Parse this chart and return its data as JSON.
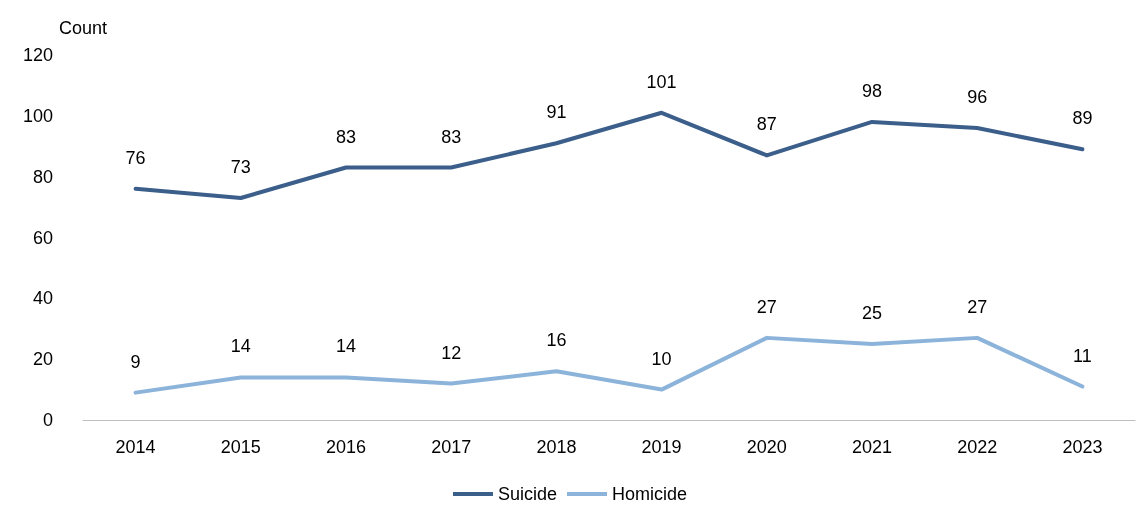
{
  "chart_data": {
    "type": "line",
    "ylabel": "Count",
    "categories": [
      "2014",
      "2015",
      "2016",
      "2017",
      "2018",
      "2019",
      "2020",
      "2021",
      "2022",
      "2023"
    ],
    "series": [
      {
        "name": "Suicide",
        "color": "#3b5f8a",
        "values": [
          76,
          73,
          83,
          83,
          91,
          101,
          87,
          98,
          96,
          89
        ]
      },
      {
        "name": "Homicide",
        "color": "#8cb3d9",
        "values": [
          9,
          14,
          14,
          12,
          16,
          10,
          27,
          25,
          27,
          11
        ]
      }
    ],
    "ylim": [
      0,
      120
    ],
    "yticks": [
      0,
      20,
      40,
      60,
      80,
      100,
      120
    ],
    "grid": false,
    "legend": "bottom",
    "marker": "none",
    "line_style": "solid",
    "data_labels": true
  }
}
